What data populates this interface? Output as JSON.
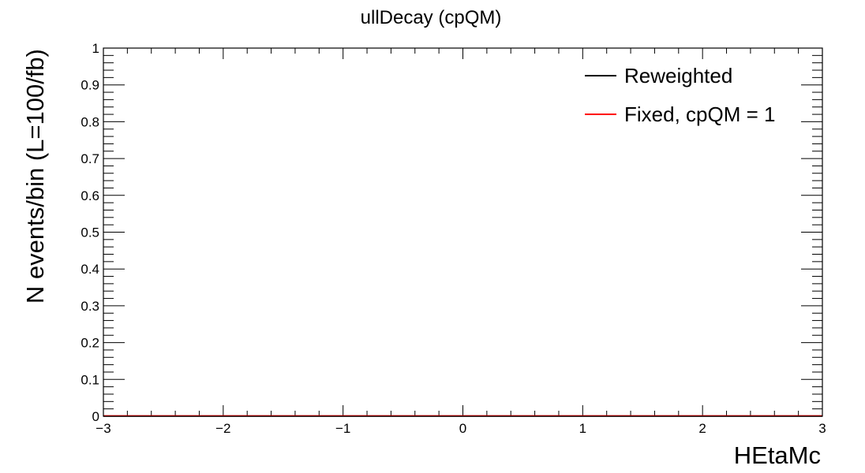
{
  "chart_data": {
    "type": "line",
    "title": "ullDecay (cpQM)",
    "xlabel": "HEtaMc",
    "ylabel": "N events/bin (L=100/fb)",
    "xlim": [
      -3,
      3
    ],
    "ylim": [
      0,
      1
    ],
    "x_ticks": [
      "−3",
      "−2",
      "−1",
      "0",
      "1",
      "2",
      "3"
    ],
    "y_ticks": [
      "0",
      "0.1",
      "0.2",
      "0.3",
      "0.4",
      "0.5",
      "0.6",
      "0.7",
      "0.8",
      "0.9",
      "1"
    ],
    "grid": false,
    "legend_position": "top-right",
    "series": [
      {
        "name": "Reweighted",
        "color": "#000000",
        "x": [
          -3,
          3
        ],
        "values": [
          0,
          0
        ]
      },
      {
        "name": "Fixed, cpQM = 1",
        "color": "#ff0000",
        "x": [
          -3,
          3
        ],
        "values": [
          0,
          0
        ]
      }
    ]
  }
}
